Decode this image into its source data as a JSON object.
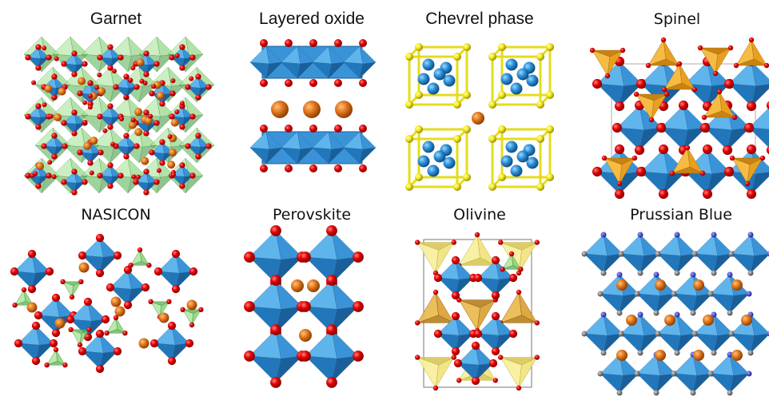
{
  "panels": [
    {
      "title": "Garnet"
    },
    {
      "title": "Layered oxide"
    },
    {
      "title": "Chevrel phase"
    },
    {
      "title": "Spinel"
    },
    {
      "title": "NASICON"
    },
    {
      "title": "Perovskite"
    },
    {
      "title": "Olivine"
    },
    {
      "title": "Prussian Blue"
    }
  ]
}
